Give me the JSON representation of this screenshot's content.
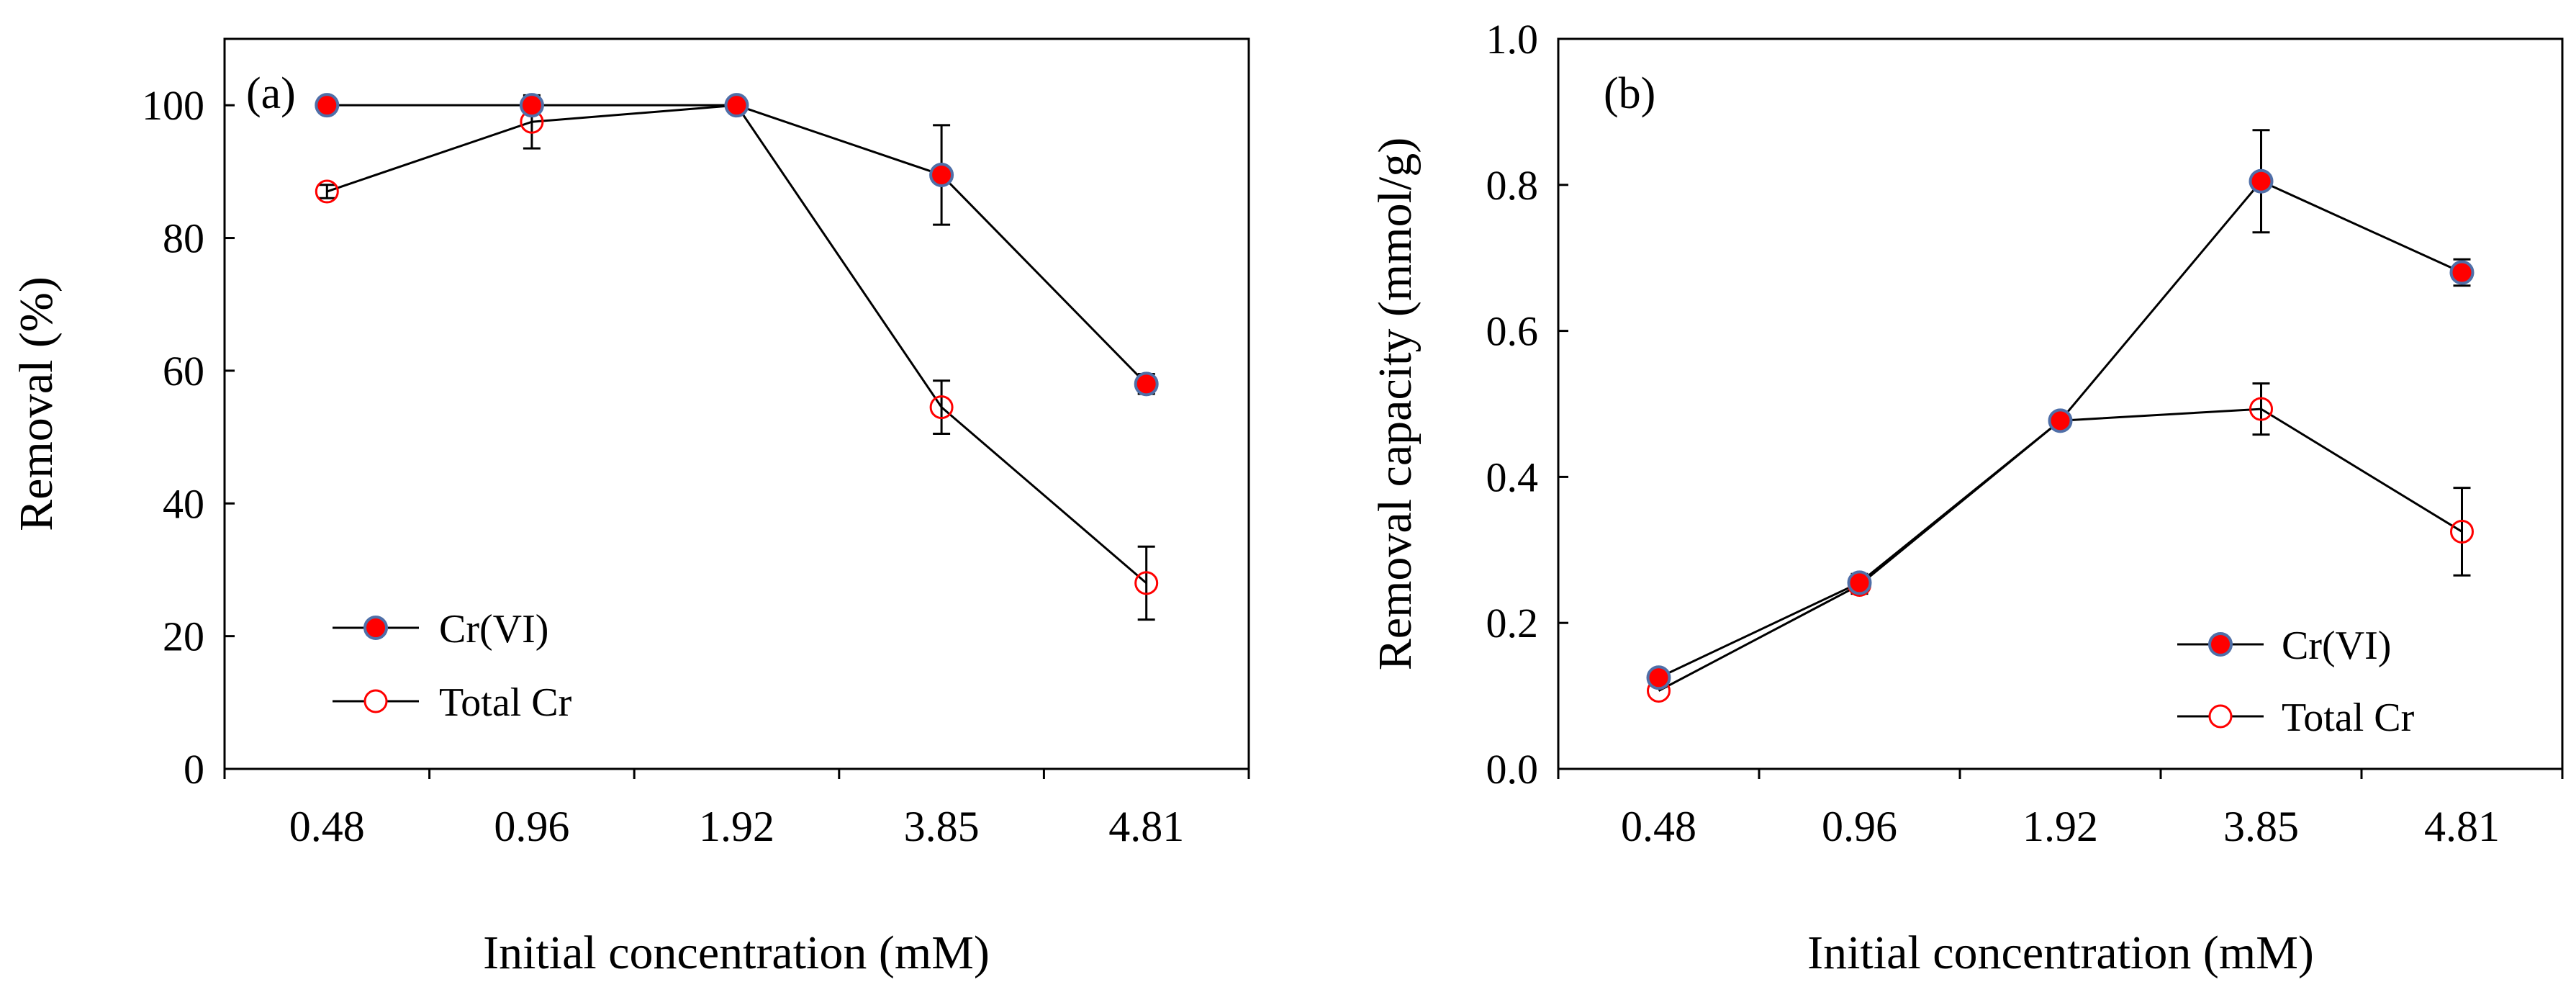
{
  "chart_data": [
    {
      "panel_label": "(a)",
      "type": "line",
      "categories": [
        "0.48",
        "0.96",
        "1.92",
        "3.85",
        "4.81"
      ],
      "xlabel": "Initial concentration (mM)",
      "ylabel": "Removal (%)",
      "ylim": [
        0,
        110
      ],
      "yticks": [
        0,
        20,
        40,
        60,
        80,
        100
      ],
      "ytick_labels": [
        "0",
        "20",
        "40",
        "60",
        "80",
        "100"
      ],
      "legend_position": "lower-left",
      "series": [
        {
          "name": "Cr(VI)",
          "marker": "filled-circle",
          "color": "#ff0000",
          "edge": "#4f6fa8",
          "values": [
            100,
            100,
            100,
            89.5,
            58
          ],
          "errors": [
            0,
            0,
            0,
            7.5,
            1.5
          ]
        },
        {
          "name": "Total Cr",
          "marker": "open-circle",
          "color": "#ff0000",
          "edge": "#ff0000",
          "values": [
            87,
            97.5,
            100,
            54.5,
            28
          ],
          "errors": [
            1,
            4,
            0,
            4,
            5.5
          ]
        }
      ]
    },
    {
      "panel_label": "(b)",
      "type": "line",
      "categories": [
        "0.48",
        "0.96",
        "1.92",
        "3.85",
        "4.81"
      ],
      "xlabel": "Initial concentration (mM)",
      "ylabel": "Removal capacity (mmol/g)",
      "ylim": [
        0,
        1.0
      ],
      "yticks": [
        0,
        0.2,
        0.4,
        0.6,
        0.8,
        1.0
      ],
      "ytick_labels": [
        "0.0",
        "0.2",
        "0.4",
        "0.6",
        "0.8",
        "1.0"
      ],
      "legend_position": "lower-right",
      "series": [
        {
          "name": "Cr(VI)",
          "marker": "filled-circle",
          "color": "#ff0000",
          "edge": "#4f6fa8",
          "values": [
            0.125,
            0.255,
            0.477,
            0.805,
            0.68
          ],
          "errors": [
            0.01,
            0.012,
            0,
            0.07,
            0.018
          ]
        },
        {
          "name": "Total Cr",
          "marker": "open-circle",
          "color": "#ff0000",
          "edge": "#ff0000",
          "values": [
            0.107,
            0.252,
            0.477,
            0.493,
            0.325
          ],
          "errors": [
            0,
            0.012,
            0,
            0.035,
            0.06
          ]
        }
      ]
    }
  ]
}
